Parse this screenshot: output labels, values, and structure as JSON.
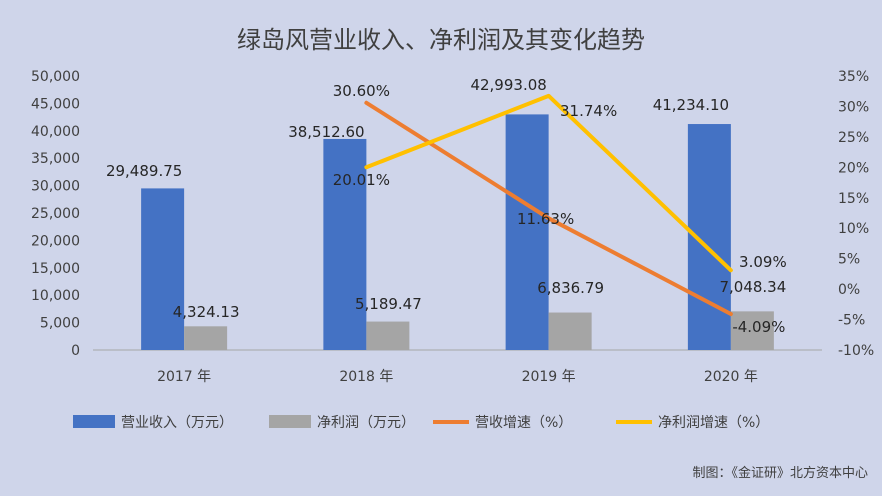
{
  "chart_data": {
    "type": "bar",
    "title": "绿岛风营业收入、净利润及其变化趋势",
    "categories": [
      "2017 年",
      "2018 年",
      "2019 年",
      "2020 年"
    ],
    "series": [
      {
        "name": "营业收入（万元）",
        "type": "bar",
        "axis": "left",
        "color": "#4472c4",
        "values": [
          29489.75,
          38512.6,
          42993.08,
          41234.1
        ],
        "labels": [
          "29,489.75",
          "38,512.60",
          "42,993.08",
          "41,234.10"
        ]
      },
      {
        "name": "净利润（万元）",
        "type": "bar",
        "axis": "left",
        "color": "#a5a5a5",
        "values": [
          4324.13,
          5189.47,
          6836.79,
          7048.34
        ],
        "labels": [
          "4,324.13",
          "5,189.47",
          "6,836.79",
          "7,048.34"
        ]
      },
      {
        "name": "营收增速（%）",
        "type": "line",
        "axis": "right",
        "color": "#ed7d31",
        "values": [
          null,
          30.6,
          11.63,
          -4.09
        ],
        "labels": [
          "",
          "30.60%",
          "11.63%",
          "-4.09%"
        ]
      },
      {
        "name": "净利润增速（%）",
        "type": "line",
        "axis": "right",
        "color": "#ffc000",
        "values": [
          null,
          20.01,
          31.74,
          3.09
        ],
        "labels": [
          "",
          "20.01%",
          "31.74%",
          "3.09%"
        ]
      }
    ],
    "y_left": {
      "min": 0,
      "max": 50000,
      "step": 5000,
      "ticks": [
        "0",
        "5,000",
        "10,000",
        "15,000",
        "20,000",
        "25,000",
        "30,000",
        "35,000",
        "40,000",
        "45,000",
        "50,000"
      ]
    },
    "y_right": {
      "min": -10,
      "max": 35,
      "step": 5,
      "ticks": [
        "-10%",
        "-5%",
        "0%",
        "5%",
        "10%",
        "15%",
        "20%",
        "25%",
        "30%",
        "35%"
      ]
    },
    "grid": false,
    "legend_position": "bottom",
    "background": "#cfd5ea"
  },
  "credit": "制图：《金证研》北方资本中心"
}
